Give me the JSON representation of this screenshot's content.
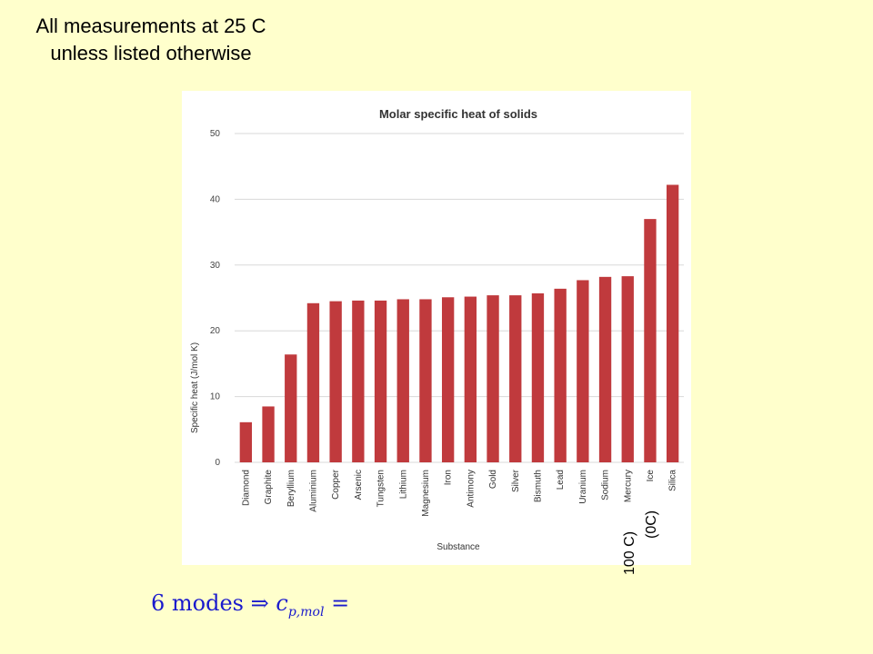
{
  "note": {
    "line1": "All measurements at 25 C",
    "line2": "unless listed otherwise"
  },
  "annotations": {
    "mercury_temp": "100 C)",
    "ice_temp": "(0C)"
  },
  "formula": {
    "modes": "6 modes",
    "arrow": "⇒",
    "symbol": "c",
    "subscript": "p,mol",
    "equals": "="
  },
  "colors": {
    "bar": "#c03a3d",
    "background": "#ffffcc",
    "formula": "#1a1acc"
  },
  "chart_data": {
    "type": "bar",
    "title": "Molar specific heat of solids",
    "xlabel": "Substance",
    "ylabel": "Specific heat (J/mol K)",
    "ylim": [
      0,
      50
    ],
    "yticks": [
      "0",
      "10",
      "20",
      "30",
      "40",
      "50"
    ],
    "grid": true,
    "categories": [
      "Diamond",
      "Graphite",
      "Beryllium",
      "Aluminium",
      "Copper",
      "Arsenic",
      "Tungsten",
      "Lithium",
      "Magnesium",
      "Iron",
      "Antimony",
      "Gold",
      "Silver",
      "Bismuth",
      "Lead",
      "Uranium",
      "Sodium",
      "Mercury",
      "Ice",
      "Silica"
    ],
    "values": [
      6.1,
      8.5,
      16.4,
      24.2,
      24.5,
      24.6,
      24.6,
      24.8,
      24.8,
      25.1,
      25.2,
      25.4,
      25.4,
      25.7,
      26.4,
      27.7,
      28.2,
      28.3,
      37.0,
      42.2
    ]
  }
}
